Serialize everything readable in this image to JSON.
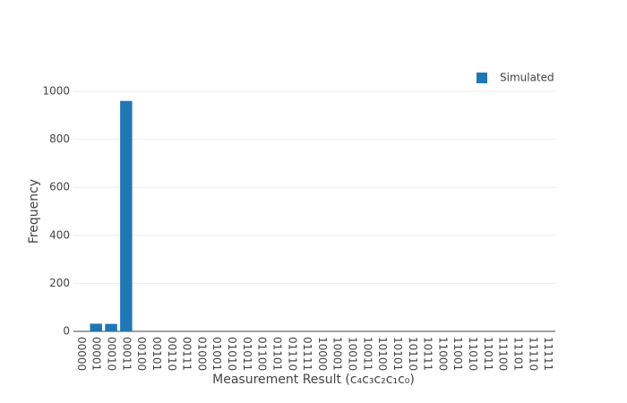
{
  "chart_data": {
    "type": "bar",
    "x_label": "Measurement Result (c₄c₃c₂c₁c₀)",
    "y_label": "Frequency",
    "categories": [
      "00000",
      "00001",
      "00010",
      "00011",
      "00100",
      "00101",
      "00110",
      "00111",
      "01000",
      "01001",
      "01010",
      "01011",
      "01100",
      "01101",
      "01110",
      "01111",
      "10000",
      "10001",
      "10010",
      "10011",
      "10100",
      "10101",
      "10110",
      "10111",
      "11000",
      "11001",
      "11010",
      "11011",
      "11100",
      "11101",
      "11110",
      "11111"
    ],
    "series": [
      {
        "name": "Simulated",
        "color": "#1f77b4",
        "values": [
          0,
          32,
          31,
          960,
          0,
          0,
          0,
          0,
          0,
          0,
          0,
          0,
          0,
          0,
          0,
          0,
          0,
          0,
          0,
          0,
          0,
          0,
          0,
          0,
          0,
          0,
          0,
          0,
          0,
          0,
          0,
          0
        ]
      }
    ],
    "ylim": [
      0,
      1000
    ],
    "yticks": [
      0,
      200,
      400,
      600,
      800,
      1000
    ],
    "grid": true,
    "legend": "top-right"
  }
}
